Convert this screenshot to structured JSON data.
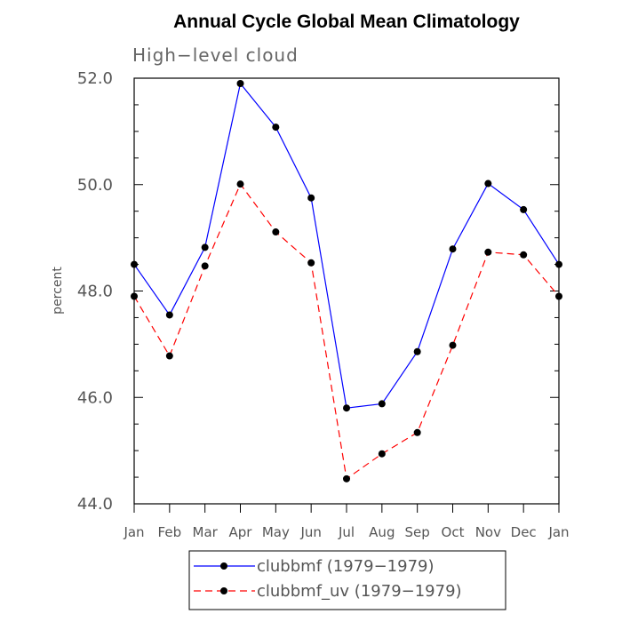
{
  "chart_data": {
    "type": "line",
    "title": "Annual Cycle Global Mean Climatology",
    "subtitle": "High−level cloud",
    "ylabel": "percent",
    "xlabel": "",
    "ylim": [
      44.0,
      52.0
    ],
    "yticks": [
      "44.0",
      "46.0",
      "48.0",
      "50.0",
      "52.0"
    ],
    "ytick_values": [
      44,
      46,
      48,
      50,
      52
    ],
    "categories": [
      "Jan",
      "Feb",
      "Mar",
      "Apr",
      "May",
      "Jun",
      "Jul",
      "Aug",
      "Sep",
      "Oct",
      "Nov",
      "Dec",
      "Jan"
    ],
    "series": [
      {
        "name": "clubbmf (1979−1979)",
        "color": "#0000ff",
        "dash": "solid",
        "values": [
          48.5,
          47.55,
          48.82,
          51.9,
          51.08,
          49.75,
          45.8,
          45.88,
          46.86,
          48.79,
          50.02,
          49.53,
          48.5
        ]
      },
      {
        "name": "clubbmf_uv (1979−1979)",
        "color": "#ff0000",
        "dash": "dashed",
        "values": [
          47.9,
          46.78,
          48.47,
          50.01,
          49.11,
          48.53,
          44.47,
          44.94,
          45.34,
          46.98,
          48.73,
          48.68,
          47.9
        ]
      }
    ],
    "legend": "bottom",
    "grid": false
  }
}
